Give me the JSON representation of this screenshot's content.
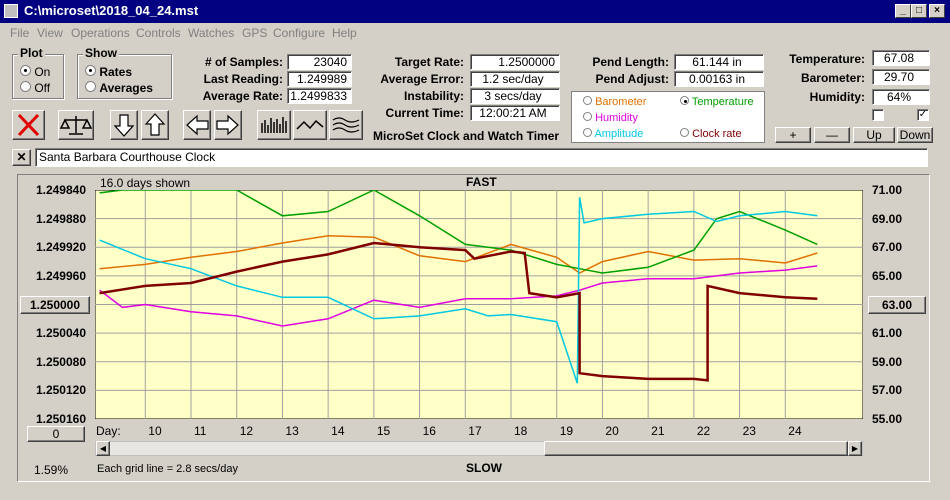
{
  "title": "C:\\microset\\2018_04_24.mst",
  "menu": [
    "File",
    "View",
    "Operations",
    "Controls",
    "Watches",
    "GPS",
    "Configure",
    "Help"
  ],
  "plot": {
    "label": "Plot",
    "on": "On",
    "off": "Off"
  },
  "show": {
    "label": "Show",
    "rates": "Rates",
    "averages": "Averages"
  },
  "stats": {
    "samples_label": "# of Samples:",
    "samples": "23040",
    "last_label": "Last Reading:",
    "last": "1.249989",
    "avg_label": "Average Rate:",
    "avg": "1.2499833"
  },
  "rates": {
    "target_label": "Target Rate:",
    "target": "1.2500000",
    "err_label": "Average Error:",
    "err": "1.2 sec/day",
    "inst_label": "Instability:",
    "inst": "3 secs/day",
    "time_label": "Current Time:",
    "time": "12:00:21 AM"
  },
  "pend": {
    "len_label": "Pend Length:",
    "len": "61.144 in",
    "adj_label": "Pend Adjust:",
    "adj": "0.00163 in"
  },
  "env": {
    "temp_label": "Temperature:",
    "temp": "67.08",
    "baro_label": "Barometer:",
    "baro": "29.70",
    "hum_label": "Humidity:",
    "hum": "64%"
  },
  "series_select": {
    "barometer": "Barometer",
    "temperature": "Temperature",
    "humidity": "Humidity",
    "amplitude": "Amplitude",
    "clock_rate": "Clock rate",
    "colors": {
      "barometer": "#e07000",
      "temperature": "#00a000",
      "humidity": "#e000e0",
      "amplitude": "#00c8e0",
      "clock_rate": "#800000"
    }
  },
  "small_buttons": {
    "plus": "+",
    "minus": "—",
    "up": "Up",
    "down": "Down"
  },
  "app_label": "MicroSet Clock and Watch Timer",
  "clock_name": "Santa Barbara Courthouse Clock",
  "chart_data": {
    "type": "line",
    "top_label": "FAST",
    "bottom_label": "SLOW",
    "days_shown": "16.0 days shown",
    "grid_note": "Each grid line = 2.8 secs/day",
    "day_label": "Day:",
    "percent": "1.59%",
    "left_button": "1.250000",
    "right_button": "63.00",
    "zero_button": "0",
    "x_ticks": [
      "10",
      "11",
      "12",
      "13",
      "14",
      "15",
      "16",
      "17",
      "18",
      "19",
      "20",
      "21",
      "22",
      "23",
      "24"
    ],
    "xlim": [
      8.9,
      25.7
    ],
    "y_left_ticks": [
      "1.249840",
      "1.249880",
      "1.249920",
      "1.249960",
      "1.250000",
      "1.250040",
      "1.250080",
      "1.250120",
      "1.250160"
    ],
    "y_right_ticks": [
      "71.00",
      "69.00",
      "67.00",
      "65.00",
      "63.00",
      "61.00",
      "59.00",
      "57.00",
      "55.00"
    ],
    "ylim_right": [
      55,
      71
    ],
    "series": [
      {
        "key": "barometer",
        "color": "#e07000",
        "x": [
          9,
          10,
          11,
          12,
          13,
          14,
          15,
          16,
          17,
          18,
          19,
          19.5,
          20,
          21,
          22,
          23,
          24,
          24.7
        ],
        "y": [
          65.5,
          65.8,
          66.3,
          66.7,
          67.3,
          67.8,
          67.7,
          66.4,
          66.0,
          67.2,
          66.3,
          65.2,
          66.0,
          66.7,
          66.1,
          66.2,
          65.9,
          66.6
        ]
      },
      {
        "key": "temperature",
        "color": "#00a000",
        "x": [
          9,
          9.5,
          10,
          11,
          12,
          13,
          14,
          15,
          16,
          17,
          18,
          19,
          19.5,
          20,
          21,
          22,
          22.5,
          23,
          24,
          24.7
        ],
        "y": [
          70.8,
          71,
          71,
          71,
          71,
          69.2,
          69.5,
          71,
          69.2,
          67.2,
          66.8,
          65.8,
          65.5,
          65.2,
          65.6,
          66.8,
          69.0,
          69.5,
          68.2,
          67.2
        ]
      },
      {
        "key": "humidity",
        "color": "#e000e0",
        "x": [
          9,
          9.5,
          10,
          11,
          12,
          13,
          14,
          15,
          16,
          17,
          18,
          19,
          19.5,
          20,
          21,
          22,
          23,
          24,
          24.7
        ],
        "y": [
          64.0,
          62.8,
          63.0,
          62.5,
          62.2,
          61.5,
          62.0,
          63.3,
          62.8,
          63.4,
          63.4,
          63.6,
          64.0,
          64.5,
          64.8,
          64.8,
          65.2,
          65.4,
          65.7
        ]
      },
      {
        "key": "amplitude",
        "color": "#00c8e0",
        "x": [
          9,
          10,
          11,
          12,
          13,
          14,
          15,
          16,
          17,
          17.5,
          18,
          19,
          19.45,
          19.5,
          19.6,
          20,
          21,
          22,
          22.5,
          23,
          24,
          24.7
        ],
        "y": [
          67.5,
          66.2,
          65.5,
          64.3,
          63.5,
          63.5,
          62.0,
          62.2,
          62.7,
          62.2,
          62.3,
          61.8,
          57.5,
          70.5,
          68.7,
          69.0,
          69.3,
          69.5,
          68.8,
          69.2,
          69.5,
          69.2
        ]
      },
      {
        "key": "clock_rate",
        "color": "#800000",
        "x": [
          9,
          10,
          11,
          12,
          13,
          14,
          15,
          16,
          17,
          17.2,
          18,
          18.3,
          18.4,
          19,
          19.5,
          19.5,
          20,
          21,
          22,
          22.3,
          22.3,
          23,
          24,
          24.7
        ],
        "y": [
          63.8,
          64.3,
          64.5,
          65.3,
          66.0,
          66.5,
          67.3,
          67.0,
          66.8,
          66.2,
          66.7,
          66.6,
          63.8,
          63.5,
          63.8,
          58.2,
          58.0,
          57.8,
          57.8,
          57.7,
          64.3,
          63.8,
          63.5,
          63.4
        ]
      }
    ]
  }
}
